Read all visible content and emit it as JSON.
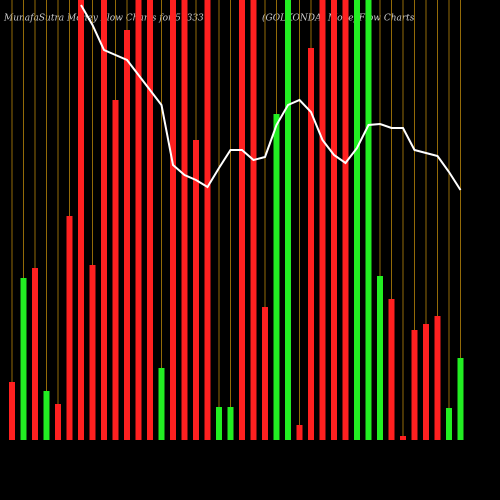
{
  "chart_data": {
    "type": "bar",
    "title": "MunafaSutra  Money Flow  Charts for 513337",
    "subtitle": "(GOLKONDA) MoneyFlow Charts",
    "ylim": [
      0,
      440
    ],
    "grid": true,
    "grid_color": "#b8860b",
    "values": [
      58,
      162,
      172,
      49,
      36,
      224,
      440,
      175,
      440,
      340,
      410,
      440,
      440,
      72,
      440,
      440,
      300,
      440,
      33,
      33,
      440,
      440,
      133,
      326,
      440,
      15,
      392,
      440,
      440,
      440,
      440,
      440,
      164,
      141,
      4,
      110,
      116,
      124,
      32,
      82
    ],
    "colors": [
      "#ff2020",
      "#22ee22",
      "#ff2020",
      "#22ee22",
      "#ff2020",
      "#ff2020",
      "#ff2020",
      "#ff2020",
      "#ff2020",
      "#ff2020",
      "#ff2020",
      "#ff2020",
      "#ff2020",
      "#22ee22",
      "#ff2020",
      "#ff2020",
      "#ff2020",
      "#ff2020",
      "#22ee22",
      "#22ee22",
      "#ff2020",
      "#ff2020",
      "#ff2020",
      "#22ee22",
      "#22ee22",
      "#ff2020",
      "#ff2020",
      "#ff2020",
      "#ff2020",
      "#ff2020",
      "#22ee22",
      "#22ee22",
      "#22ee22",
      "#ff2020",
      "#ff2020",
      "#ff2020",
      "#ff2020",
      "#ff2020",
      "#22ee22",
      "#22ee22"
    ],
    "line": {
      "color": "#ffffff",
      "values": [
        null,
        null,
        null,
        null,
        null,
        null,
        435,
        415,
        390,
        385,
        380,
        365,
        350,
        335,
        275,
        265,
        260,
        253,
        272,
        290,
        290,
        280,
        283,
        315,
        335,
        340,
        328,
        300,
        285,
        277,
        292,
        315,
        316,
        312,
        312,
        290,
        287,
        284,
        268,
        250
      ]
    }
  }
}
